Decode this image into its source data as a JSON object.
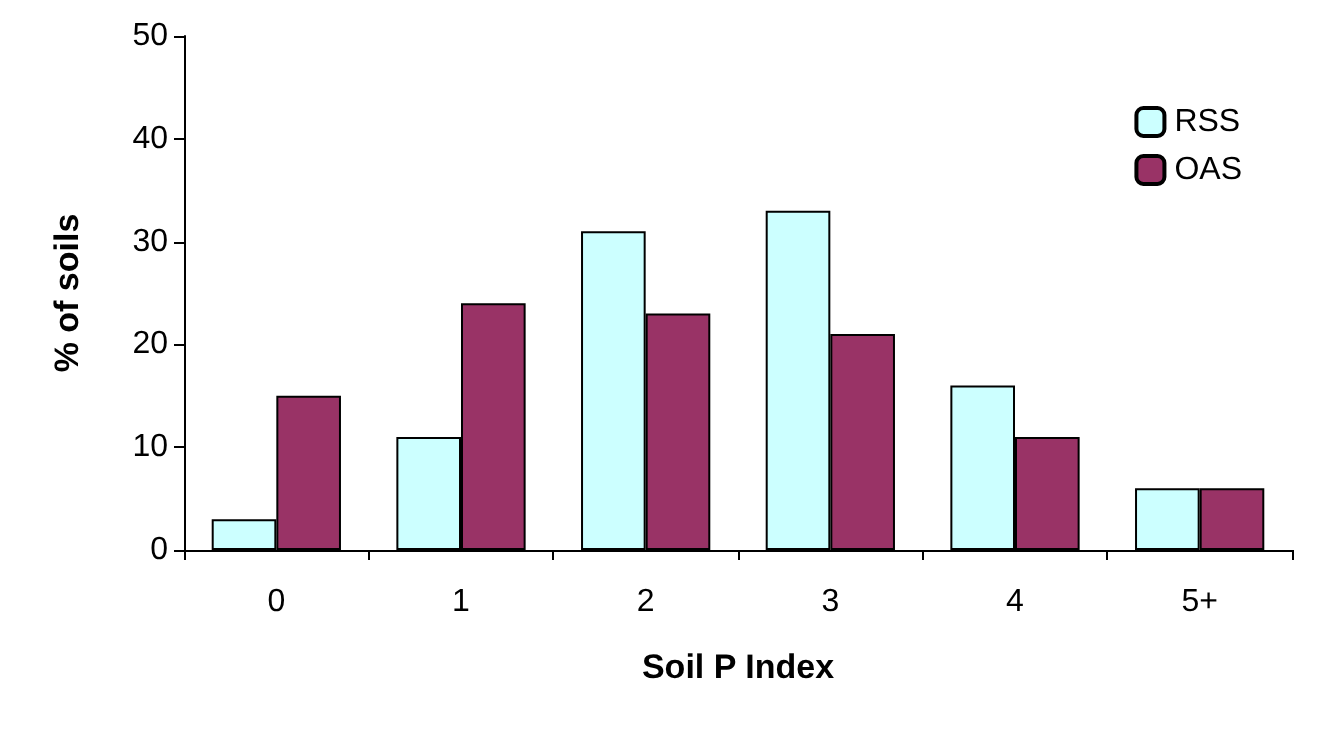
{
  "chart_data": {
    "type": "bar",
    "xlabel": "Soil P Index",
    "ylabel": "% of soils",
    "categories": [
      "0",
      "1",
      "2",
      "3",
      "4",
      "5+"
    ],
    "series": [
      {
        "name": "RSS",
        "color": "#ccffff",
        "values": [
          3,
          11,
          31,
          33,
          16,
          6
        ]
      },
      {
        "name": "OAS",
        "color": "#993366",
        "values": [
          15,
          24,
          23,
          21,
          11,
          6
        ]
      }
    ],
    "ylim": [
      0,
      50
    ],
    "yticks": [
      0,
      10,
      20,
      30,
      40,
      50
    ],
    "grid": false,
    "legend": "top right"
  }
}
